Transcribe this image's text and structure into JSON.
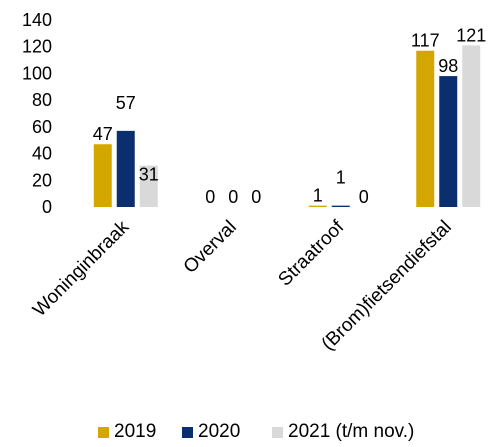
{
  "chart_data": {
    "type": "bar",
    "title": "",
    "xlabel": "",
    "ylabel": "",
    "ylim": [
      0,
      140
    ],
    "yticks": [
      0,
      20,
      40,
      60,
      80,
      100,
      120,
      140
    ],
    "grid": false,
    "legend_position": "bottom",
    "categories": [
      "Woninginbraak",
      "Overval",
      "Straatroof",
      "(Brom)fietsendiefstal"
    ],
    "series": [
      {
        "name": "2019",
        "color": "#d4a700",
        "values": [
          47,
          0,
          1,
          117
        ]
      },
      {
        "name": "2020",
        "color": "#0b2e6f",
        "values": [
          57,
          0,
          1,
          98
        ]
      },
      {
        "name": "2021 (t/m nov.)",
        "color": "#d9d9d9",
        "values": [
          31,
          0,
          0,
          121
        ]
      }
    ]
  }
}
